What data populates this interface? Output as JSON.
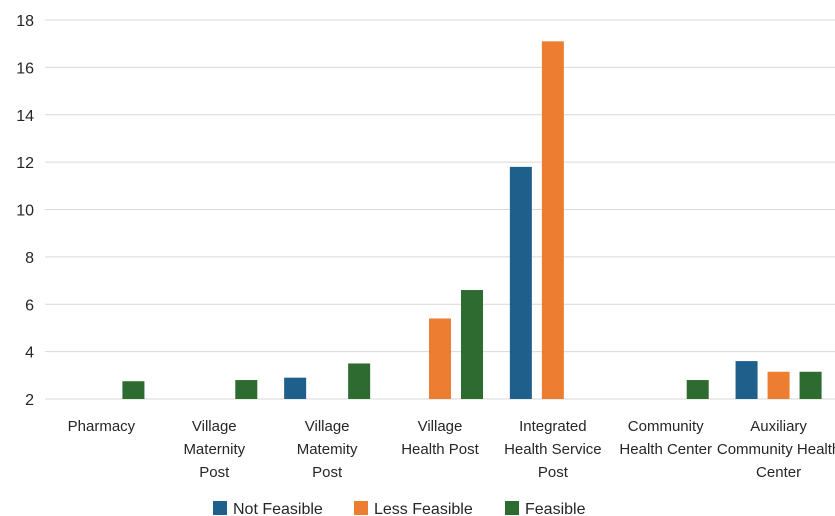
{
  "chart_data": {
    "type": "bar",
    "categories": [
      [
        "Pharmacy"
      ],
      [
        "Village",
        "Maternity",
        "Post"
      ],
      [
        "Village",
        "Matemity",
        "Post"
      ],
      [
        "Village",
        "Health Post"
      ],
      [
        "Integrated",
        "Health Service",
        "Post"
      ],
      [
        "Community",
        "Health Center"
      ],
      [
        "Auxiliary",
        "Community Health",
        "Center"
      ]
    ],
    "series": [
      {
        "name": "Not Feasible",
        "color": "#1f5f8b",
        "values": [
          null,
          null,
          2.9,
          null,
          11.8,
          null,
          3.6
        ]
      },
      {
        "name": "Less Feasible",
        "color": "#ed7d31",
        "values": [
          null,
          null,
          null,
          5.4,
          17.1,
          null,
          3.15
        ]
      },
      {
        "name": "Feasible",
        "color": "#2e6b30",
        "values": [
          2.75,
          2.8,
          3.5,
          6.6,
          null,
          2.8,
          3.15
        ]
      }
    ],
    "yticks": [
      2,
      4,
      6,
      8,
      10,
      12,
      14,
      16,
      18
    ],
    "ylim": [
      2,
      18
    ],
    "grid": true,
    "legend_position": "bottom"
  }
}
